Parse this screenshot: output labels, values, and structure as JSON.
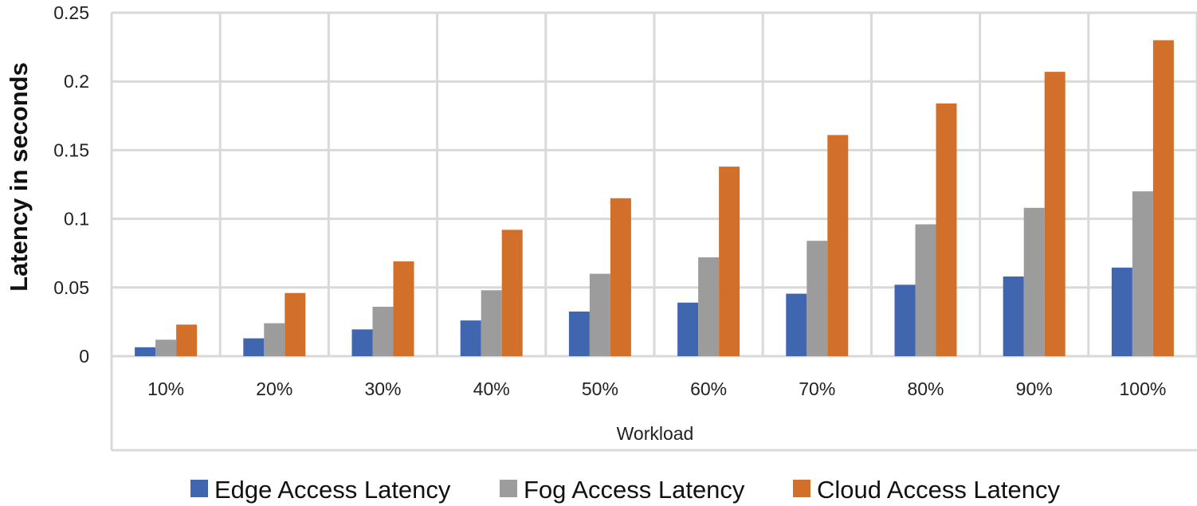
{
  "chart_data": {
    "type": "bar",
    "title": "",
    "xlabel": "Workload",
    "ylabel": "Latency in seconds",
    "ylim": [
      0,
      0.25
    ],
    "yticks": [
      "0",
      "0.05",
      "0.1",
      "0.15",
      "0.2",
      "0.25"
    ],
    "ytick_values": [
      0,
      0.05,
      0.1,
      0.15,
      0.2,
      0.25
    ],
    "categories": [
      "10%",
      "20%",
      "30%",
      "40%",
      "50%",
      "60%",
      "70%",
      "80%",
      "90%",
      "100%"
    ],
    "series": [
      {
        "name": "Edge Access Latency",
        "color": "#4066b0",
        "values": [
          0.0065,
          0.013,
          0.0195,
          0.026,
          0.0325,
          0.039,
          0.0455,
          0.052,
          0.058,
          0.0645
        ]
      },
      {
        "name": "Fog Access Latency",
        "color": "#9c9c9c",
        "values": [
          0.012,
          0.024,
          0.036,
          0.048,
          0.06,
          0.072,
          0.084,
          0.096,
          0.108,
          0.12
        ]
      },
      {
        "name": "Cloud Access Latency",
        "color": "#d2702b",
        "values": [
          0.023,
          0.046,
          0.069,
          0.092,
          0.115,
          0.138,
          0.161,
          0.184,
          0.207,
          0.23
        ]
      }
    ],
    "grid": true,
    "legend_position": "bottom"
  }
}
